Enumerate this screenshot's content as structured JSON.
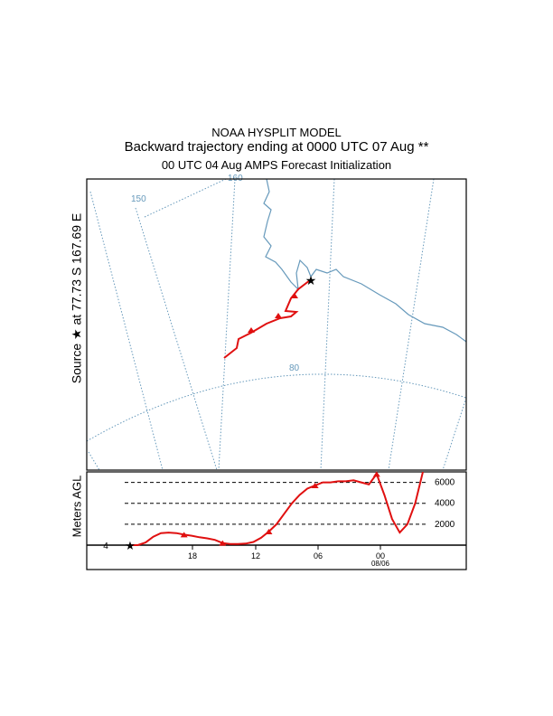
{
  "header": {
    "line1": "NOAA HYSPLIT MODEL",
    "line2": "Backward trajectory ending at 0000 UTC 07 Aug **",
    "line3": "00 UTC 04 Aug     AMPS  Forecast Initialization"
  },
  "source_label": "Source ★ at   77.73 S  167.69 E",
  "vertical_label": "Meters AGL",
  "colors": {
    "trajectory": "#e01010",
    "coastline": "#6699bb",
    "graticule": "#6699bb",
    "frame": "#000000"
  },
  "map": {
    "meridian_labels": [
      "150",
      "160"
    ],
    "parallel_label": "80",
    "source_marker": "star-icon"
  },
  "chart_data": {
    "type": "line",
    "series": [
      {
        "values_agl_m": [
          0,
          0,
          250,
          800,
          1150,
          1200,
          1150,
          1000,
          900,
          750,
          650,
          500,
          200,
          100,
          100,
          150,
          300,
          700,
          1300,
          2000,
          3000,
          4000,
          4800,
          5400,
          5700,
          6000,
          6000,
          6100,
          6100,
          6200,
          6000,
          5800,
          6800,
          4800,
          2500,
          1200,
          2000,
          4000,
          7000
        ]
      }
    ],
    "time_tick_labels": [
      "18",
      "12",
      "06",
      "00"
    ],
    "date_label": "08/06",
    "ref_levels": [
      {
        "value": 6000,
        "label": "6000"
      },
      {
        "value": 4000,
        "label": "4000"
      },
      {
        "value": 2000,
        "label": "2000"
      }
    ],
    "left_label": "4",
    "ylim": [
      0,
      7000
    ]
  }
}
